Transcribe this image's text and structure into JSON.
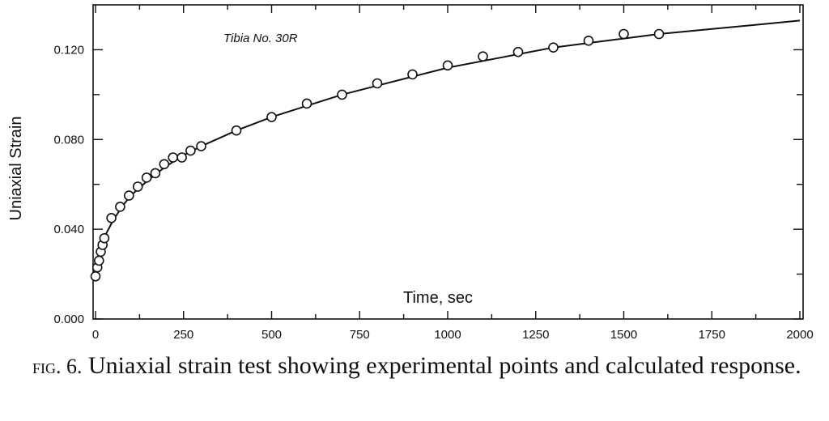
{
  "caption": {
    "label": "fig. 6.",
    "text": "Uniaxial strain test showing experimental points and calculated response."
  },
  "chart_data": {
    "type": "scatter",
    "ylabel": "Uniaxial Strain",
    "xlabel": "Time, sec",
    "annotation": "Tibia No. 30R",
    "xlim": [
      0,
      2000
    ],
    "ylim": [
      0.0,
      0.14
    ],
    "x_ticks": [
      0,
      250,
      500,
      750,
      1000,
      1250,
      1500,
      1750,
      2000
    ],
    "x_tick_labels": [
      "0",
      "250",
      "500",
      "750",
      "1000",
      "1250",
      "1500",
      "1750",
      "2000"
    ],
    "y_ticks": [
      0.0,
      0.04,
      0.08,
      0.12
    ],
    "y_tick_labels": [
      "0.000",
      "0.040",
      "0.080",
      "0.120"
    ],
    "grid": false,
    "series": [
      {
        "kind": "points",
        "marker": "open-circle",
        "x": [
          0,
          5,
          10,
          15,
          20,
          25,
          45,
          70,
          95,
          120,
          145,
          170,
          195,
          220,
          245,
          270,
          300,
          400,
          500,
          600,
          700,
          800,
          900,
          1000,
          1100,
          1200,
          1300,
          1400,
          1500,
          1600
        ],
        "y": [
          0.019,
          0.023,
          0.026,
          0.03,
          0.033,
          0.036,
          0.045,
          0.05,
          0.055,
          0.059,
          0.063,
          0.065,
          0.069,
          0.072,
          0.072,
          0.075,
          0.077,
          0.084,
          0.09,
          0.096,
          0.1,
          0.105,
          0.109,
          0.113,
          0.117,
          0.119,
          0.121,
          0.124,
          0.127,
          0.127
        ]
      },
      {
        "kind": "line",
        "x": [
          0,
          5,
          10,
          20,
          30,
          50,
          75,
          100,
          150,
          200,
          250,
          300,
          400,
          500,
          600,
          700,
          800,
          900,
          1000,
          1100,
          1200,
          1300,
          1400,
          1500,
          1600,
          1700,
          1800,
          1900,
          2000
        ],
        "y": [
          0.019,
          0.025,
          0.029,
          0.034,
          0.038,
          0.044,
          0.05,
          0.055,
          0.062,
          0.068,
          0.073,
          0.077,
          0.084,
          0.09,
          0.095,
          0.1,
          0.104,
          0.108,
          0.112,
          0.115,
          0.118,
          0.121,
          0.123,
          0.125,
          0.127,
          0.1285,
          0.13,
          0.1315,
          0.133
        ]
      }
    ]
  }
}
